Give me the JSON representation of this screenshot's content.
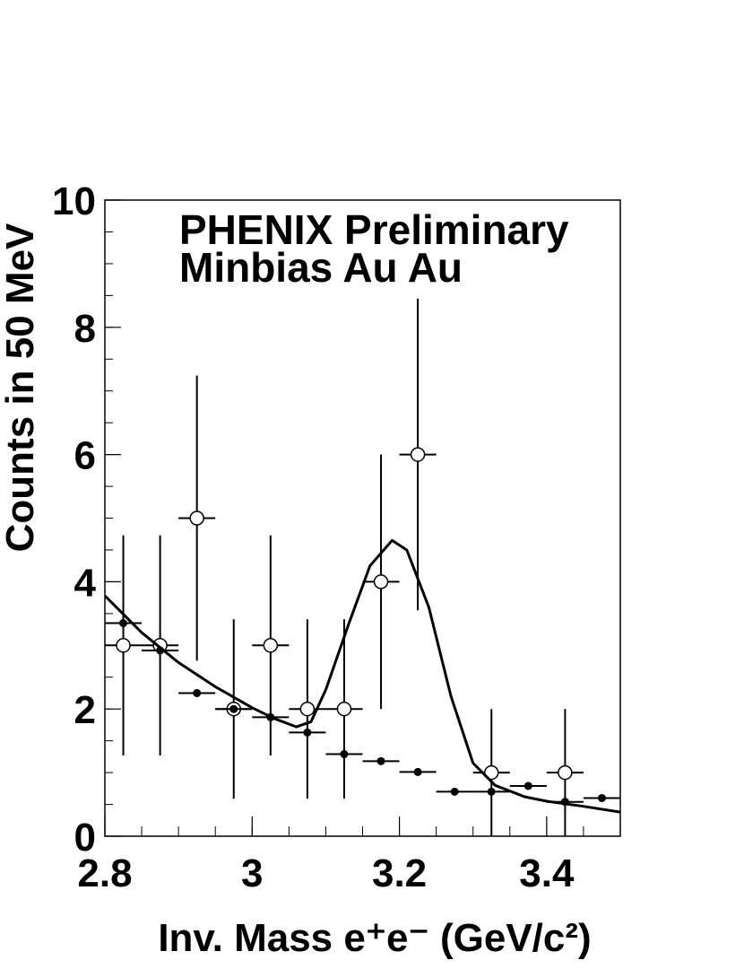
{
  "chart_data": {
    "type": "errorbar",
    "title": [
      "PHENIX Preliminary",
      "Minbias Au Au"
    ],
    "x_label": "Inv. Mass e⁺e⁻ (GeV/c²)",
    "y_label": "Counts in 50 MeV",
    "xlim": [
      2.8,
      3.5
    ],
    "xticks": [
      2.8,
      3,
      3.2,
      3.4
    ],
    "ylim": [
      0,
      10
    ],
    "yticks": [
      0,
      2,
      4,
      6,
      8,
      10
    ],
    "xerr": 0.025,
    "series": [
      {
        "marker": "open",
        "color": "#000000",
        "x": [
          2.825,
          2.875,
          2.925,
          2.975,
          3.025,
          3.075,
          3.125,
          3.175,
          3.225,
          3.325,
          3.425
        ],
        "values": [
          3,
          3,
          5,
          2,
          3,
          2,
          2,
          4,
          6,
          1,
          1
        ],
        "errors": [
          1.73,
          1.73,
          2.24,
          1.41,
          1.73,
          1.41,
          1.41,
          2,
          2.45,
          1,
          1
        ]
      },
      {
        "marker": "filled",
        "color": "#000000",
        "x": [
          2.825,
          2.875,
          2.925,
          2.975,
          3.025,
          3.075,
          3.125,
          3.175,
          3.225,
          3.275,
          3.325,
          3.375,
          3.425,
          3.475
        ],
        "values": [
          3.35,
          2.92,
          2.25,
          2.0,
          1.87,
          1.63,
          1.29,
          1.18,
          1.01,
          0.7,
          0.7,
          0.79,
          0.54,
          0.6
        ]
      },
      {
        "marker": "line",
        "color": "#000000",
        "x": [
          2.8,
          2.85,
          2.9,
          2.95,
          3.0,
          3.03,
          3.06,
          3.08,
          3.1,
          3.13,
          3.16,
          3.19,
          3.21,
          3.24,
          3.27,
          3.3,
          3.33,
          3.37,
          3.4,
          3.45,
          3.5
        ],
        "values": [
          3.78,
          3.2,
          2.73,
          2.35,
          2.02,
          1.85,
          1.72,
          1.8,
          2.3,
          3.3,
          4.25,
          4.65,
          4.5,
          3.6,
          2.2,
          1.15,
          0.8,
          0.62,
          0.55,
          0.47,
          0.38
        ]
      }
    ]
  }
}
